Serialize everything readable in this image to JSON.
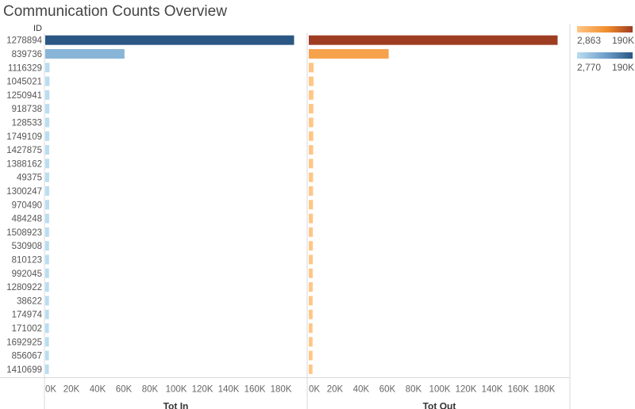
{
  "title": "Communication Counts Overview",
  "chart_data": {
    "type": "bar",
    "orientation": "horizontal",
    "row_header": "ID",
    "categories": [
      "1278894",
      "839736",
      "1116329",
      "1045021",
      "1250941",
      "918738",
      "128533",
      "1749109",
      "1427875",
      "1388162",
      "49375",
      "1300247",
      "970490",
      "484248",
      "1508923",
      "530908",
      "810123",
      "992045",
      "1280922",
      "38622",
      "174974",
      "171002",
      "1692925",
      "856067",
      "1410699"
    ],
    "xticks": [
      "0K",
      "20K",
      "40K",
      "60K",
      "80K",
      "100K",
      "120K",
      "140K",
      "160K",
      "180K"
    ],
    "xlim": [
      0,
      200000
    ],
    "grid": false,
    "panels": [
      {
        "name": "Tot In",
        "xlabel": "Tot In",
        "values": [
          190000,
          60500,
          3300,
          3250,
          3200,
          3150,
          3100,
          3100,
          3050,
          3050,
          3000,
          3000,
          2980,
          2960,
          2940,
          2920,
          2900,
          2880,
          2860,
          2850,
          2830,
          2810,
          2800,
          2790,
          2770
        ],
        "color_range": [
          "#b9ddf1",
          "#2a5783"
        ],
        "color_legend": {
          "min": "2,770",
          "max": "190K"
        }
      },
      {
        "name": "Tot Out",
        "xlabel": "Tot Out",
        "values": [
          190000,
          61000,
          3700,
          3600,
          3550,
          3500,
          3450,
          3400,
          3350,
          3300,
          3300,
          3250,
          3200,
          3150,
          3100,
          3100,
          3050,
          3000,
          3000,
          2950,
          2950,
          2900,
          2900,
          2880,
          2863
        ],
        "color_range": [
          "#ffc685",
          "#9e3d22"
        ],
        "color_legend": {
          "min": "2,863",
          "max": "190K"
        }
      }
    ],
    "legend_position": "top-right"
  }
}
